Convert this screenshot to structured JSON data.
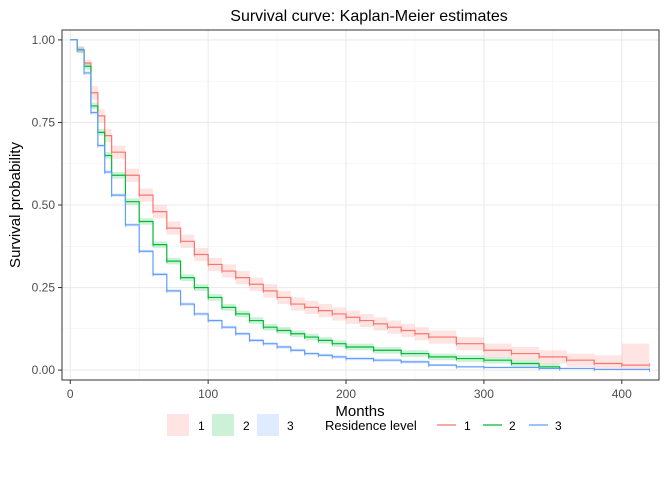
{
  "chart_data": {
    "type": "line",
    "title": "Survival curve: Kaplan-Meier estimates",
    "xlabel": "Months",
    "ylabel": "Survival probability",
    "xlim": [
      -6,
      427
    ],
    "ylim": [
      -0.03,
      1.03
    ],
    "x_ticks": [
      0,
      100,
      200,
      300,
      400
    ],
    "y_ticks": [
      0.0,
      0.25,
      0.5,
      0.75,
      1.0
    ],
    "x_tick_labels": [
      "0",
      "100",
      "200",
      "300",
      "400"
    ],
    "y_tick_labels": [
      "0.00",
      "0.25",
      "0.50",
      "0.75",
      "1.00"
    ],
    "grid": true,
    "legend_position": "bottom",
    "legend_fill_labels": [
      "1",
      "2",
      "3"
    ],
    "legend_title": "Residence level",
    "series": [
      {
        "name": "1",
        "color": "#F8766D",
        "x": [
          0,
          5,
          10,
          15,
          20,
          25,
          30,
          40,
          50,
          60,
          70,
          80,
          90,
          100,
          110,
          120,
          130,
          140,
          150,
          160,
          170,
          180,
          190,
          200,
          210,
          220,
          230,
          240,
          250,
          260,
          280,
          300,
          320,
          340,
          360,
          380,
          400,
          420
        ],
        "y": [
          1.0,
          0.97,
          0.93,
          0.84,
          0.77,
          0.71,
          0.66,
          0.59,
          0.53,
          0.48,
          0.43,
          0.39,
          0.35,
          0.32,
          0.3,
          0.28,
          0.26,
          0.24,
          0.22,
          0.2,
          0.19,
          0.18,
          0.17,
          0.16,
          0.15,
          0.14,
          0.13,
          0.12,
          0.11,
          0.1,
          0.08,
          0.06,
          0.05,
          0.04,
          0.03,
          0.02,
          0.015,
          0.015
        ],
        "ci_lower": [
          1.0,
          0.96,
          0.92,
          0.82,
          0.75,
          0.69,
          0.64,
          0.57,
          0.51,
          0.46,
          0.41,
          0.37,
          0.33,
          0.3,
          0.28,
          0.26,
          0.24,
          0.22,
          0.2,
          0.18,
          0.17,
          0.16,
          0.15,
          0.14,
          0.13,
          0.12,
          0.11,
          0.1,
          0.09,
          0.08,
          0.06,
          0.04,
          0.03,
          0.02,
          0.01,
          0.005,
          0.003,
          0.003
        ],
        "ci_upper": [
          1.0,
          0.98,
          0.94,
          0.86,
          0.79,
          0.73,
          0.68,
          0.61,
          0.55,
          0.5,
          0.45,
          0.41,
          0.37,
          0.34,
          0.32,
          0.3,
          0.28,
          0.26,
          0.24,
          0.22,
          0.21,
          0.2,
          0.19,
          0.18,
          0.17,
          0.16,
          0.15,
          0.14,
          0.13,
          0.12,
          0.1,
          0.08,
          0.07,
          0.06,
          0.05,
          0.045,
          0.08,
          0.08
        ]
      },
      {
        "name": "2",
        "color": "#00BA38",
        "x": [
          0,
          5,
          10,
          15,
          20,
          25,
          30,
          40,
          50,
          60,
          70,
          80,
          90,
          100,
          110,
          120,
          130,
          140,
          150,
          160,
          170,
          180,
          190,
          200,
          220,
          240,
          260,
          280,
          300,
          320,
          340,
          355
        ],
        "y": [
          1.0,
          0.97,
          0.92,
          0.8,
          0.72,
          0.65,
          0.59,
          0.51,
          0.45,
          0.38,
          0.33,
          0.28,
          0.25,
          0.22,
          0.19,
          0.17,
          0.15,
          0.13,
          0.12,
          0.11,
          0.1,
          0.09,
          0.08,
          0.07,
          0.06,
          0.05,
          0.04,
          0.035,
          0.03,
          0.02,
          0.01,
          0.005
        ],
        "ci_lower": [
          1.0,
          0.96,
          0.91,
          0.79,
          0.71,
          0.64,
          0.58,
          0.5,
          0.44,
          0.37,
          0.32,
          0.27,
          0.24,
          0.21,
          0.18,
          0.16,
          0.14,
          0.12,
          0.11,
          0.1,
          0.09,
          0.08,
          0.07,
          0.06,
          0.05,
          0.04,
          0.03,
          0.025,
          0.02,
          0.01,
          0.005,
          0.001
        ],
        "ci_upper": [
          1.0,
          0.98,
          0.93,
          0.81,
          0.73,
          0.66,
          0.6,
          0.52,
          0.46,
          0.39,
          0.34,
          0.29,
          0.26,
          0.23,
          0.2,
          0.18,
          0.16,
          0.14,
          0.13,
          0.12,
          0.11,
          0.1,
          0.09,
          0.08,
          0.07,
          0.06,
          0.05,
          0.045,
          0.04,
          0.03,
          0.02,
          0.012
        ]
      },
      {
        "name": "3",
        "color": "#619CFF",
        "x": [
          0,
          5,
          10,
          15,
          20,
          25,
          30,
          40,
          50,
          60,
          70,
          80,
          90,
          100,
          110,
          120,
          130,
          140,
          150,
          160,
          170,
          180,
          190,
          200,
          220,
          240,
          260,
          280,
          300,
          340,
          380,
          420
        ],
        "y": [
          1.0,
          0.97,
          0.9,
          0.78,
          0.68,
          0.6,
          0.53,
          0.44,
          0.36,
          0.29,
          0.24,
          0.2,
          0.17,
          0.15,
          0.13,
          0.11,
          0.09,
          0.08,
          0.07,
          0.06,
          0.05,
          0.045,
          0.04,
          0.035,
          0.03,
          0.025,
          0.015,
          0.01,
          0.008,
          0.005,
          0.002,
          0.0
        ],
        "ci_lower": [
          1.0,
          0.965,
          0.895,
          0.775,
          0.675,
          0.595,
          0.525,
          0.435,
          0.355,
          0.285,
          0.235,
          0.195,
          0.165,
          0.145,
          0.125,
          0.105,
          0.085,
          0.075,
          0.065,
          0.055,
          0.045,
          0.04,
          0.035,
          0.03,
          0.025,
          0.02,
          0.012,
          0.007,
          0.005,
          0.003,
          0.001,
          0.0
        ],
        "ci_upper": [
          1.0,
          0.975,
          0.905,
          0.785,
          0.685,
          0.605,
          0.535,
          0.445,
          0.365,
          0.295,
          0.245,
          0.205,
          0.175,
          0.155,
          0.135,
          0.115,
          0.095,
          0.085,
          0.075,
          0.065,
          0.055,
          0.05,
          0.045,
          0.04,
          0.035,
          0.03,
          0.018,
          0.013,
          0.011,
          0.007,
          0.004,
          0.002
        ]
      }
    ]
  }
}
